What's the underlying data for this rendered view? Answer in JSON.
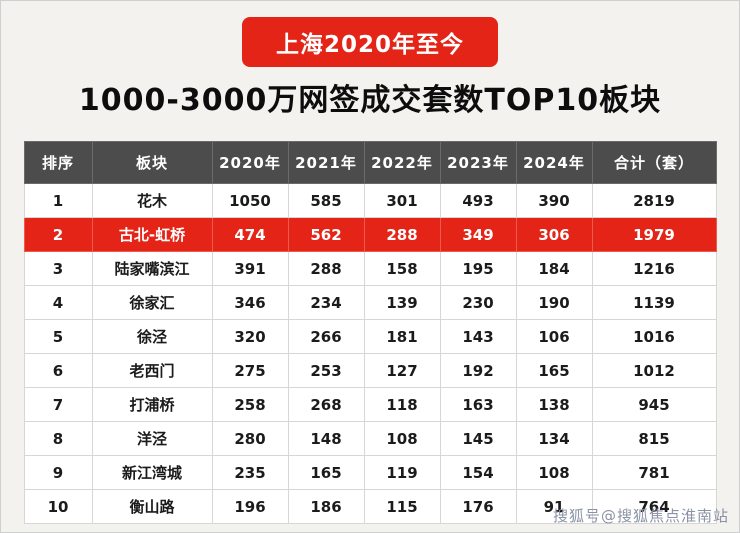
{
  "banner": {
    "label": "上海2020年至今"
  },
  "title": "1000-3000万网签成交套数TOP10板块",
  "watermark": "搜狐号@搜狐焦点淮南站",
  "colors": {
    "accent": "#e32417",
    "header_bg": "#4c4c4c",
    "highlight_text": "#ffffff"
  },
  "chart_data": {
    "type": "table",
    "title": "1000-3000万网签成交套数TOP10板块",
    "subtitle": "上海2020年至今",
    "columns": [
      "排序",
      "板块",
      "2020年",
      "2021年",
      "2022年",
      "2023年",
      "2024年",
      "合计（套）"
    ],
    "rows": [
      [
        "1",
        "花木",
        "1050",
        "585",
        "301",
        "493",
        "390",
        "2819"
      ],
      [
        "2",
        "古北-虹桥",
        "474",
        "562",
        "288",
        "349",
        "306",
        "1979"
      ],
      [
        "3",
        "陆家嘴滨江",
        "391",
        "288",
        "158",
        "195",
        "184",
        "1216"
      ],
      [
        "4",
        "徐家汇",
        "346",
        "234",
        "139",
        "230",
        "190",
        "1139"
      ],
      [
        "5",
        "徐泾",
        "320",
        "266",
        "181",
        "143",
        "106",
        "1016"
      ],
      [
        "6",
        "老西门",
        "275",
        "253",
        "127",
        "192",
        "165",
        "1012"
      ],
      [
        "7",
        "打浦桥",
        "258",
        "268",
        "118",
        "163",
        "138",
        "945"
      ],
      [
        "8",
        "洋泾",
        "280",
        "148",
        "108",
        "145",
        "134",
        "815"
      ],
      [
        "9",
        "新江湾城",
        "235",
        "165",
        "119",
        "154",
        "108",
        "781"
      ],
      [
        "10",
        "衡山路",
        "196",
        "186",
        "115",
        "176",
        "91",
        "764"
      ]
    ],
    "highlighted_row_index": 1,
    "legend_position": "none",
    "grid": true
  }
}
